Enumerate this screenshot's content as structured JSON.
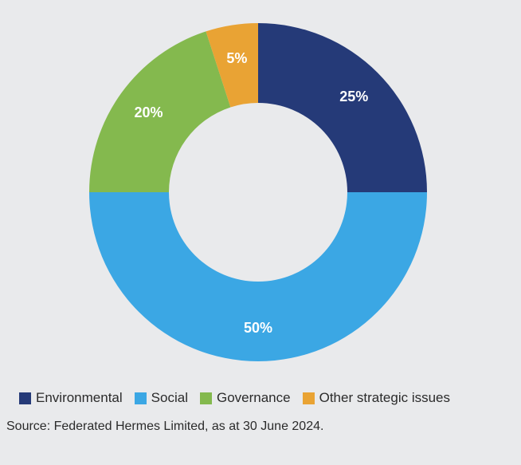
{
  "chart_data": {
    "type": "pie",
    "donut": true,
    "categories": [
      "Environmental",
      "Social",
      "Governance",
      "Other strategic issues"
    ],
    "values": [
      25,
      50,
      20,
      5
    ],
    "labels": [
      "25%",
      "50%",
      "20%",
      "5%"
    ],
    "colors": [
      "#253a78",
      "#3ba7e4",
      "#84b94e",
      "#e9a334"
    ],
    "legend_position": "bottom"
  },
  "source": "Source: Federated Hermes Limited, as at 30 June 2024."
}
